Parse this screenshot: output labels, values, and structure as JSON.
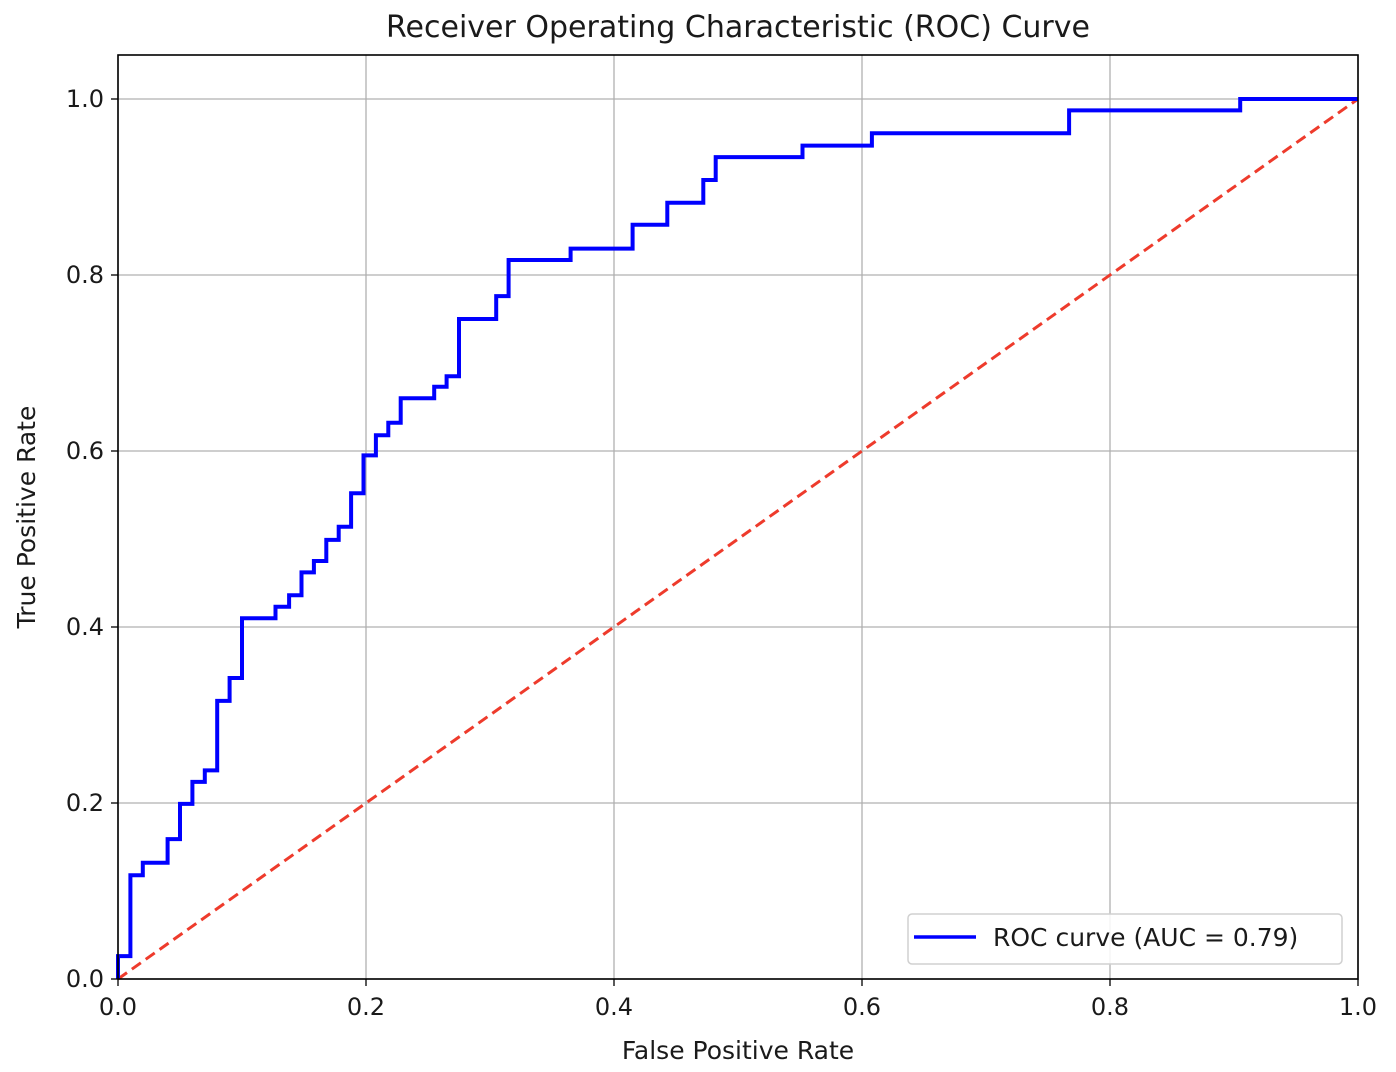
{
  "chart_data": {
    "type": "line",
    "title": "Receiver Operating Characteristic (ROC) Curve",
    "xlabel": "False Positive Rate",
    "ylabel": "True Positive Rate",
    "xlim": [
      0.0,
      1.0
    ],
    "ylim": [
      0.0,
      1.05
    ],
    "xticks": [
      "0.0",
      "0.2",
      "0.4",
      "0.6",
      "0.8",
      "1.0"
    ],
    "yticks": [
      "0.0",
      "0.2",
      "0.4",
      "0.6",
      "0.8",
      "1.0"
    ],
    "grid": true,
    "legend_position": "lower-right",
    "series": [
      {
        "name": "ROC curve (AUC = 0.79)",
        "color": "#0000ff",
        "style": "solid",
        "x": [
          0.0,
          0.0,
          0.01,
          0.01,
          0.02,
          0.02,
          0.04,
          0.04,
          0.05,
          0.05,
          0.06,
          0.06,
          0.07,
          0.07,
          0.08,
          0.08,
          0.09,
          0.09,
          0.1,
          0.1,
          0.127,
          0.127,
          0.138,
          0.138,
          0.148,
          0.148,
          0.158,
          0.158,
          0.168,
          0.168,
          0.178,
          0.178,
          0.188,
          0.188,
          0.198,
          0.198,
          0.208,
          0.208,
          0.218,
          0.218,
          0.228,
          0.228,
          0.255,
          0.255,
          0.265,
          0.265,
          0.275,
          0.275,
          0.305,
          0.305,
          0.315,
          0.315,
          0.365,
          0.365,
          0.415,
          0.415,
          0.443,
          0.443,
          0.472,
          0.472,
          0.482,
          0.482,
          0.552,
          0.552,
          0.608,
          0.608,
          0.767,
          0.767,
          0.905,
          0.905,
          1.0
        ],
        "y": [
          0.0,
          0.026,
          0.026,
          0.118,
          0.118,
          0.132,
          0.132,
          0.159,
          0.159,
          0.199,
          0.199,
          0.224,
          0.224,
          0.237,
          0.237,
          0.316,
          0.316,
          0.342,
          0.342,
          0.41,
          0.41,
          0.423,
          0.423,
          0.436,
          0.436,
          0.462,
          0.462,
          0.475,
          0.475,
          0.499,
          0.499,
          0.514,
          0.514,
          0.552,
          0.552,
          0.595,
          0.595,
          0.618,
          0.618,
          0.632,
          0.632,
          0.66,
          0.66,
          0.673,
          0.673,
          0.685,
          0.685,
          0.75,
          0.75,
          0.776,
          0.776,
          0.817,
          0.817,
          0.83,
          0.83,
          0.857,
          0.857,
          0.882,
          0.882,
          0.908,
          0.908,
          0.934,
          0.934,
          0.947,
          0.947,
          0.961,
          0.961,
          0.987,
          0.987,
          1.0,
          1.0
        ]
      },
      {
        "color": "#ee3b2c",
        "style": "dashed",
        "x": [
          0.0,
          1.0
        ],
        "y": [
          0.0,
          1.0
        ]
      }
    ]
  }
}
